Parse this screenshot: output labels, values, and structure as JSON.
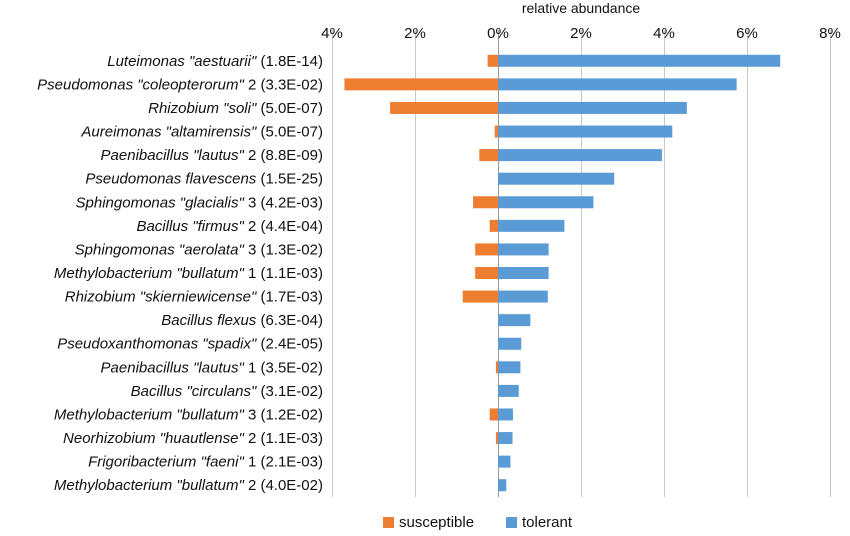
{
  "chart_data": {
    "type": "bar",
    "orientation": "horizontal",
    "xlabel": "relative abundance",
    "xlim": [
      -4,
      8
    ],
    "xticks": [
      -4,
      -2,
      0,
      2,
      4,
      6,
      8
    ],
    "xtick_labels": [
      "4%",
      "2%",
      "0%",
      "2%",
      "4%",
      "6%",
      "8%"
    ],
    "grid": true,
    "legend_position": "bottom-center",
    "categories": [
      {
        "name": "Luteimonas \"aestuarii\"",
        "suffix": " (1.8E-14)"
      },
      {
        "name": "Pseudomonas \"coleopterorum\"",
        "suffix": " 2 (3.3E-02)"
      },
      {
        "name": "Rhizobium \"soli\"",
        "suffix": " (5.0E-07)"
      },
      {
        "name": "Aureimonas \"altamirensis\"",
        "suffix": " (5.0E-07)"
      },
      {
        "name": "Paenibacillus \"lautus\"",
        "suffix": " 2 (8.8E-09)"
      },
      {
        "name": "Pseudomonas flavescens",
        "suffix": " (1.5E-25)"
      },
      {
        "name": "Sphingomonas \"glacialis\"",
        "suffix": " 3 (4.2E-03)"
      },
      {
        "name": "Bacillus \"firmus\"",
        "suffix": " 2 (4.4E-04)"
      },
      {
        "name": "Sphingomonas \"aerolata\"",
        "suffix": " 3 (1.3E-02)"
      },
      {
        "name": "Methylobacterium \"bullatum\"",
        "suffix": " 1 (1.1E-03)"
      },
      {
        "name": "Rhizobium \"skierniewicense\"",
        "suffix": " (1.7E-03)"
      },
      {
        "name": "Bacillus flexus",
        "suffix": " (6.3E-04)"
      },
      {
        "name": "Pseudoxanthomonas \"spadix\"",
        "suffix": " (2.4E-05)"
      },
      {
        "name": "Paenibacillus \"lautus\"",
        "suffix": " 1 (3.5E-02)"
      },
      {
        "name": "Bacillus \"circulans\"",
        "suffix": " (3.1E-02)"
      },
      {
        "name": "Methylobacterium \"bullatum\"",
        "suffix": " 3 (1.2E-02)"
      },
      {
        "name": "Neorhizobium \"huautlense\"",
        "suffix": " 2 (1.1E-03)"
      },
      {
        "name": "Frigoribacterium \"faeni\"",
        "suffix": " 1 (2.1E-03)"
      },
      {
        "name": "Methylobacterium \"bullatum\"",
        "suffix": " 2 (4.0E-02)"
      }
    ],
    "series": [
      {
        "name": "susceptible",
        "color": "#ED7D31",
        "values": [
          0.25,
          3.7,
          2.6,
          0.08,
          0.45,
          0.0,
          0.6,
          0.2,
          0.55,
          0.55,
          0.85,
          0.0,
          0.0,
          0.05,
          0.0,
          0.2,
          0.05,
          0.0,
          0.0
        ]
      },
      {
        "name": "tolerant",
        "color": "#5B9BD5",
        "values": [
          6.8,
          5.75,
          4.55,
          4.2,
          3.95,
          2.8,
          2.3,
          1.6,
          1.22,
          1.22,
          1.2,
          0.78,
          0.56,
          0.54,
          0.5,
          0.36,
          0.35,
          0.3,
          0.2
        ]
      }
    ]
  }
}
